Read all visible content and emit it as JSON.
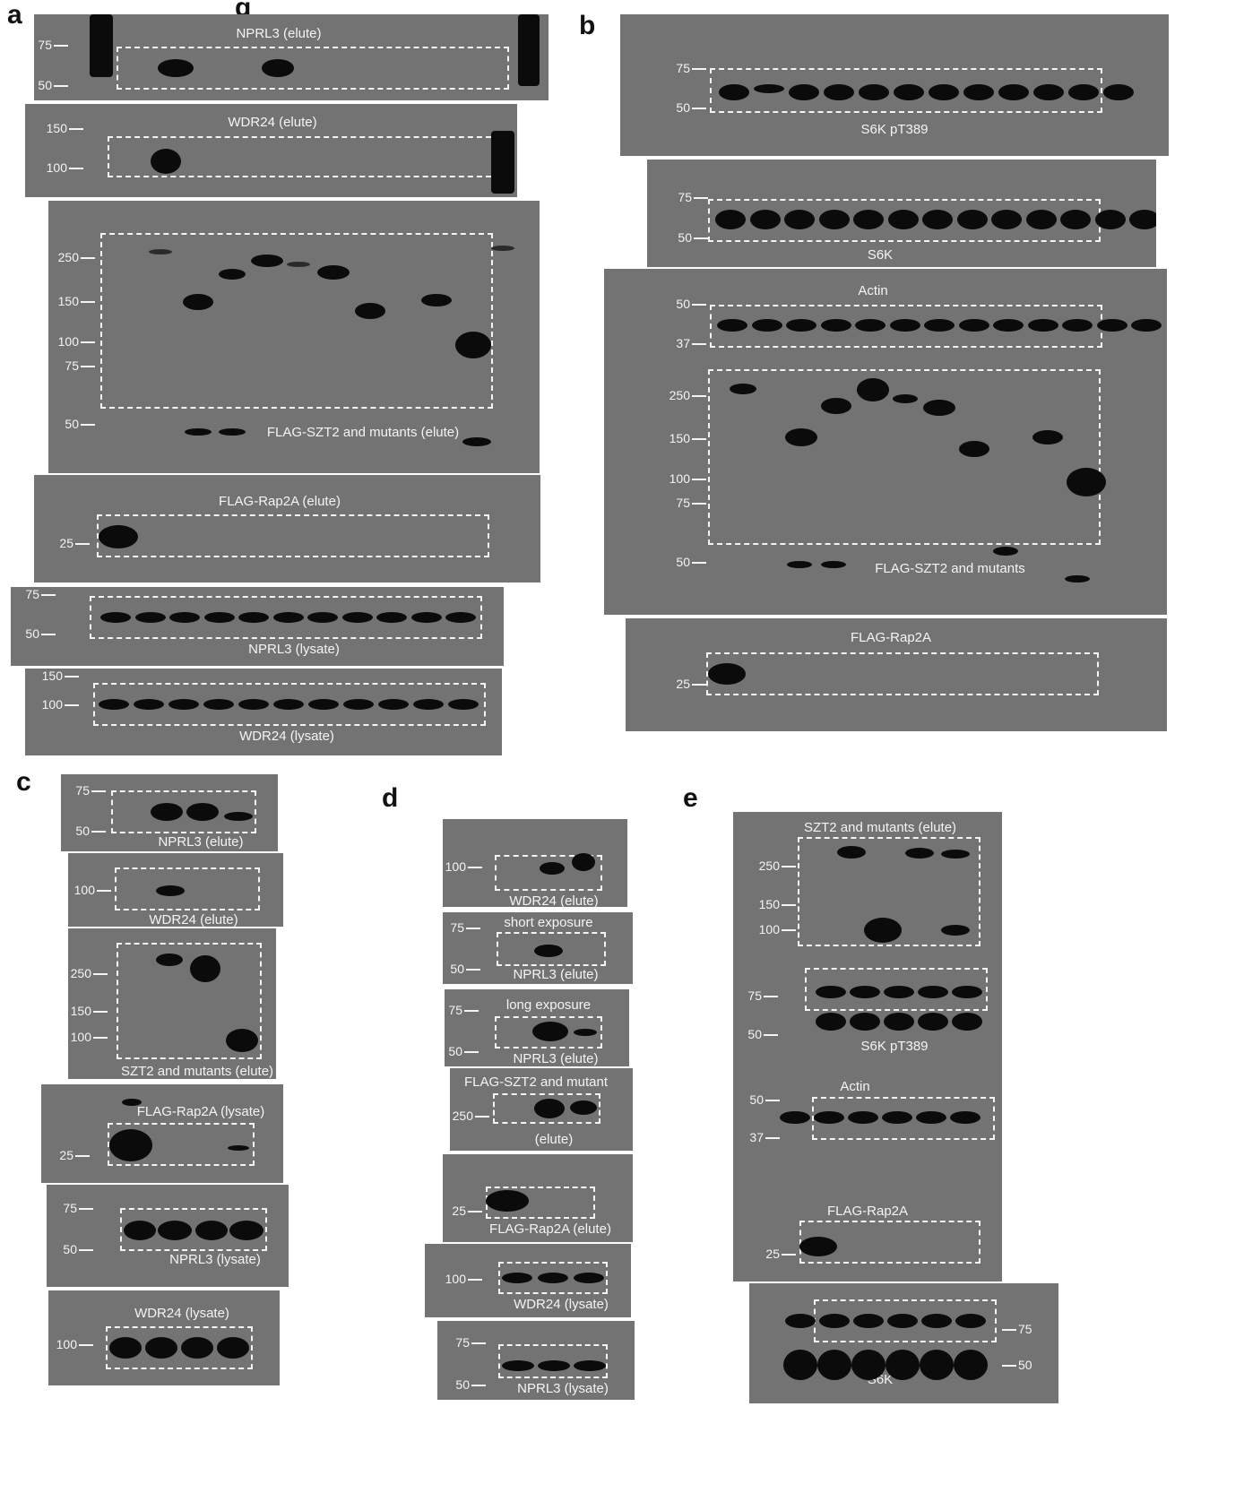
{
  "panel_letters": {
    "a": "a",
    "b": "b",
    "c": "c",
    "d": "d",
    "e": "e"
  },
  "title_fragment": "g",
  "a": {
    "nprl3_elute": "NPRL3 (elute)",
    "wdr24_elute": "WDR24 (elute)",
    "flag_szt2_elute": "FLAG-SZT2 and mutants (elute)",
    "flag_rap2a_elute": "FLAG-Rap2A (elute)",
    "nprl3_lysate": "NPRL3 (lysate)",
    "wdr24_lysate": "WDR24 (lysate)",
    "markers": {
      "m75": "75",
      "m50": "50",
      "m150": "150",
      "m100": "100",
      "m250": "250",
      "m25": "25"
    }
  },
  "b": {
    "s6k_pt389": "S6K pT389",
    "s6k": "S6K",
    "actin": "Actin",
    "flag_szt2": "FLAG-SZT2 and mutants",
    "flag_rap2a": "FLAG-Rap2A",
    "markers": {
      "m75": "75",
      "m50": "50",
      "m37": "37",
      "m250": "250",
      "m150": "150",
      "m100": "100",
      "m25": "25"
    }
  },
  "c": {
    "nprl3_elute": "NPRL3 (elute)",
    "wdr24_elute": "WDR24 (elute)",
    "szt2_elute": "SZT2 and mutants (elute)",
    "flag_rap2a_lysate": "FLAG-Rap2A (lysate)",
    "nprl3_lysate": "NPRL3 (lysate)",
    "wdr24_lysate": "WDR24 (lysate)"
  },
  "d": {
    "wdr24_elute": "WDR24 (elute)",
    "short_exposure": "short exposure",
    "nprl3_elute": "NPRL3 (elute)",
    "long_exposure": "long exposure",
    "flag_szt2_mutant": "FLAG-SZT2 and mutant",
    "elute": "(elute)",
    "flag_rap2a_elute": "FLAG-Rap2A (elute)",
    "wdr24_lysate": "WDR24 (lysate)",
    "nprl3_lysate": "NPRL3 (lysate)"
  },
  "e": {
    "szt2_elute": "SZT2 and mutants (elute)",
    "s6k_pt389": "S6K pT389",
    "actin": "Actin",
    "flag_rap2a": "FLAG-Rap2A",
    "s6k": "S6K"
  },
  "colors": {
    "membrane": "#737373",
    "band": "#0b0b0b",
    "label": "#f4f4f4"
  }
}
